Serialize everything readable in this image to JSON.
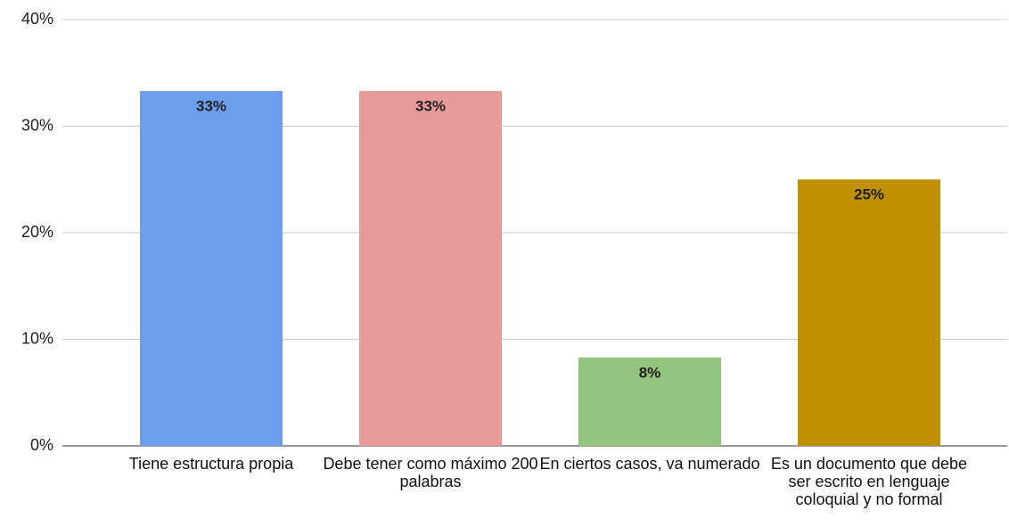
{
  "chart_data": {
    "type": "bar",
    "categories": [
      "Tiene estructura propia",
      "Debe tener como máximo 200 palabras",
      "En ciertos casos, va numerado",
      "Es un documento que debe ser escrito en lenguaje coloquial y no formal"
    ],
    "values": [
      33.3,
      33.3,
      8.3,
      25
    ],
    "value_labels": [
      "33%",
      "33%",
      "8%",
      "25%"
    ],
    "colors": [
      "#6d9eeb",
      "#ea9999",
      "#93c47d",
      "#bf9000"
    ],
    "ylim": [
      0,
      40
    ],
    "yticks": [
      {
        "value": 0,
        "label": "0%"
      },
      {
        "value": 10,
        "label": "10%"
      },
      {
        "value": 20,
        "label": "20%"
      },
      {
        "value": 30,
        "label": "30%"
      },
      {
        "value": 40,
        "label": "40%"
      }
    ],
    "grid": true
  }
}
